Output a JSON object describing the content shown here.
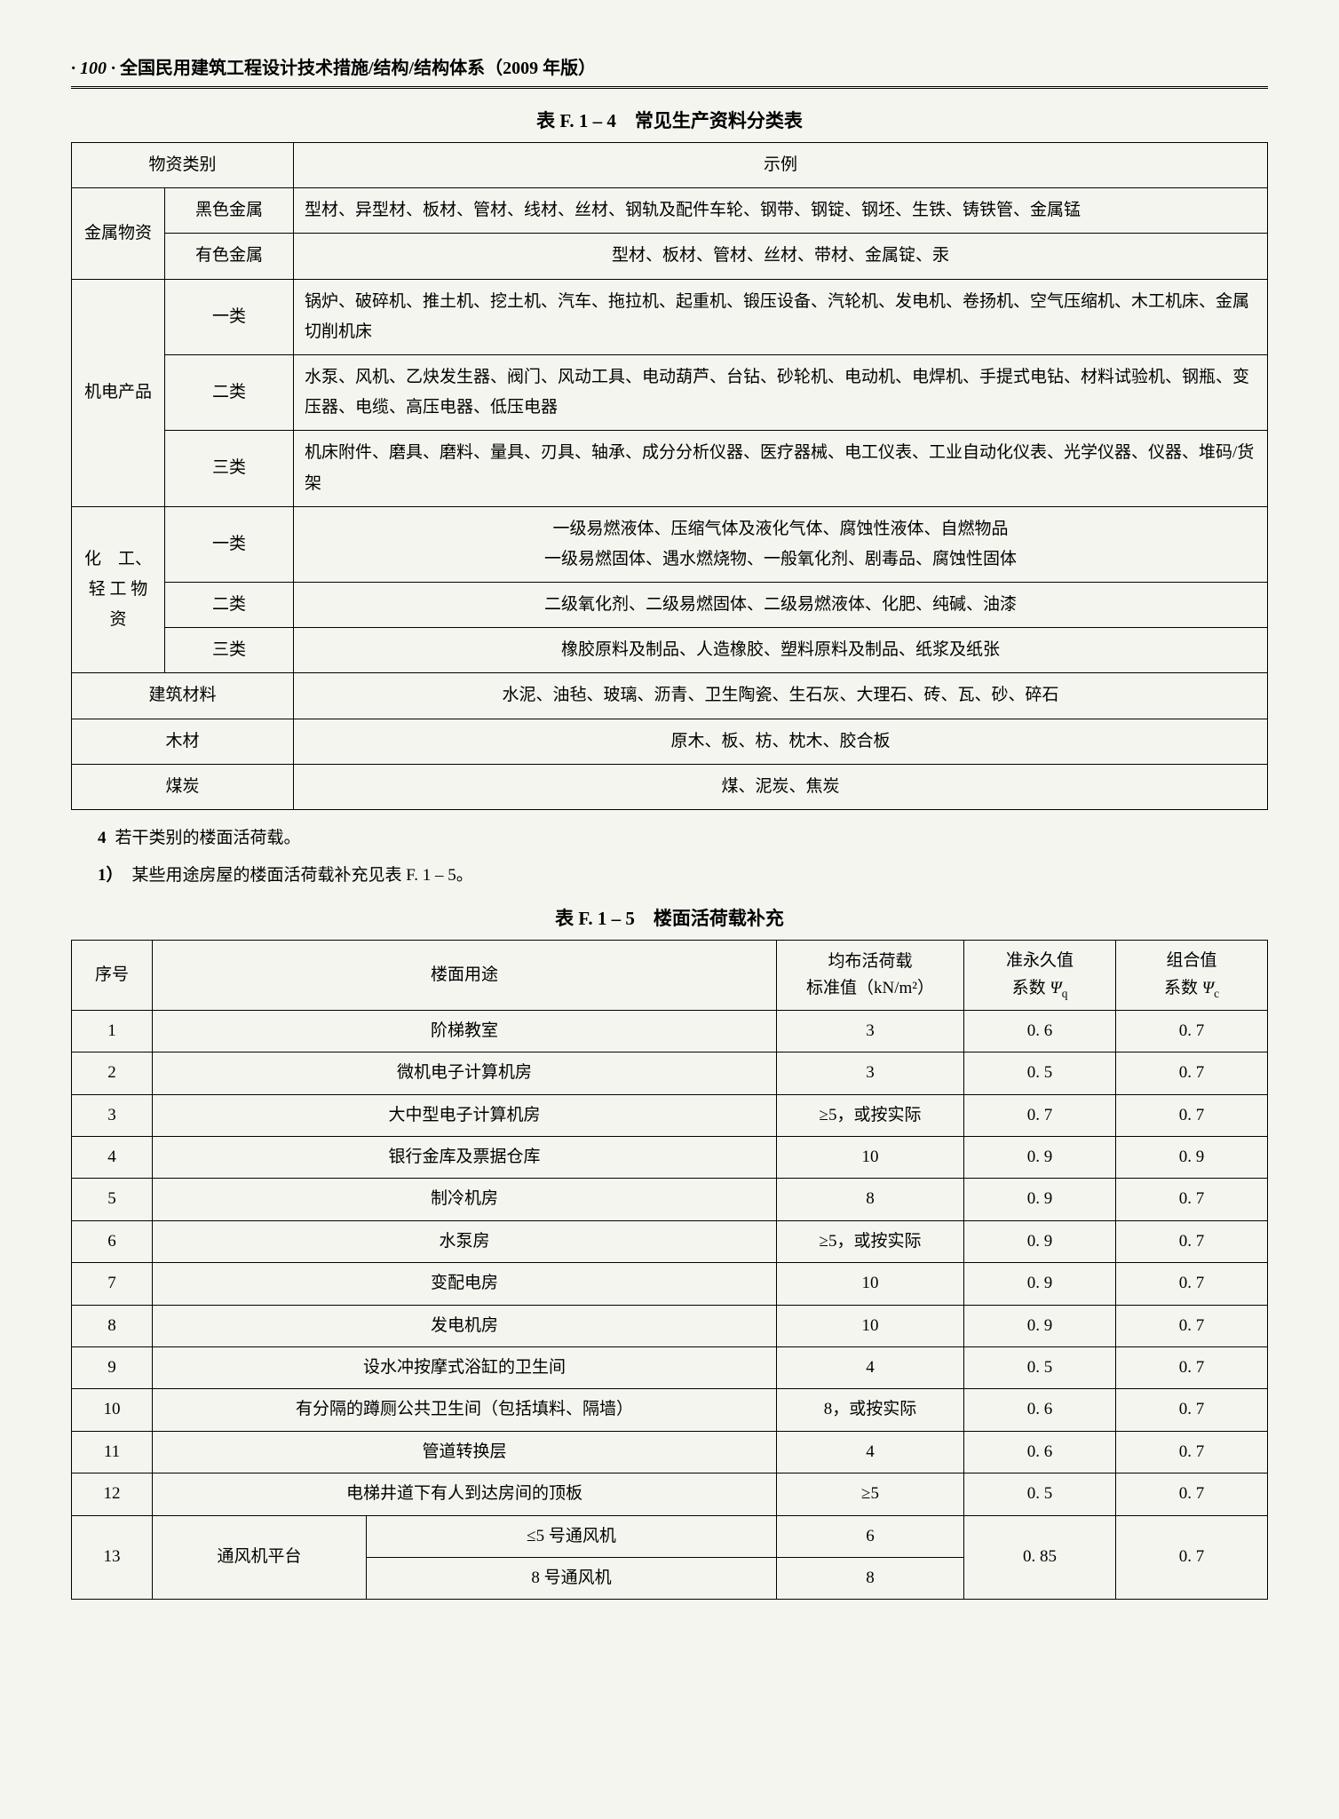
{
  "header": {
    "page_number": "· 100 ·",
    "title": "全国民用建筑工程设计技术措施/结构/结构体系（2009 年版）"
  },
  "table1": {
    "title": "表 F. 1 – 4　常见生产资料分类表",
    "header_col1": "物资类别",
    "header_col2": "示例",
    "rows": {
      "r1_cat": "金属物资",
      "r1_sub1": "黑色金属",
      "r1_ex1": "型材、异型材、板材、管材、线材、丝材、钢轨及配件车轮、钢带、钢锭、钢坯、生铁、铸铁管、金属锰",
      "r1_sub2": "有色金属",
      "r1_ex2": "型材、板材、管材、丝材、带材、金属锭、汞",
      "r2_cat": "机电产品",
      "r2_sub1": "一类",
      "r2_ex1": "锅炉、破碎机、推土机、挖土机、汽车、拖拉机、起重机、锻压设备、汽轮机、发电机、卷扬机、空气压缩机、木工机床、金属切削机床",
      "r2_sub2": "二类",
      "r2_ex2": "水泵、风机、乙炔发生器、阀门、风动工具、电动葫芦、台钻、砂轮机、电动机、电焊机、手提式电钻、材料试验机、钢瓶、变压器、电缆、高压电器、低压电器",
      "r2_sub3": "三类",
      "r2_ex3": "机床附件、磨具、磨料、量具、刃具、轴承、成分分析仪器、医疗器械、电工仪表、工业自动化仪表、光学仪器、仪器、堆码/货架",
      "r3_cat": "化　工、轻 工 物资",
      "r3_sub1": "一类",
      "r3_ex1a": "一级易燃液体、压缩气体及液化气体、腐蚀性液体、自燃物品",
      "r3_ex1b": "一级易燃固体、遇水燃烧物、一般氧化剂、剧毒品、腐蚀性固体",
      "r3_sub2": "二类",
      "r3_ex2": "二级氧化剂、二级易燃固体、二级易燃液体、化肥、纯碱、油漆",
      "r3_sub3": "三类",
      "r3_ex3": "橡胶原料及制品、人造橡胶、塑料原料及制品、纸浆及纸张",
      "r4_cat": "建筑材料",
      "r4_ex": "水泥、油毡、玻璃、沥青、卫生陶瓷、生石灰、大理石、砖、瓦、砂、碎石",
      "r5_cat": "木材",
      "r5_ex": "原木、板、枋、枕木、胶合板",
      "r6_cat": "煤炭",
      "r6_ex": "煤、泥炭、焦炭"
    }
  },
  "body": {
    "line4_num": "4",
    "line4_text": "若干类别的楼面活荷载。",
    "line1_num": "1）",
    "line1_text": "某些用途房屋的楼面活荷载补充见表 F. 1 – 5。"
  },
  "table2": {
    "title": "表 F. 1 – 5　楼面活荷载补充",
    "headers": {
      "h1": "序号",
      "h2": "楼面用途",
      "h3a": "均布活荷载",
      "h3b": "标准值（kN/m²）",
      "h4a": "准永久值",
      "h4b_prefix": "系数 ",
      "h4b_sym": "Ψ",
      "h4b_sub": "q",
      "h5a": "组合值",
      "h5b_prefix": "系数 ",
      "h5b_sym": "Ψ",
      "h5b_sub": "c"
    },
    "rows": [
      {
        "n": "1",
        "use": "阶梯教室",
        "v": "3",
        "q": "0. 6",
        "c": "0. 7"
      },
      {
        "n": "2",
        "use": "微机电子计算机房",
        "v": "3",
        "q": "0. 5",
        "c": "0. 7"
      },
      {
        "n": "3",
        "use": "大中型电子计算机房",
        "v": "≥5，或按实际",
        "q": "0. 7",
        "c": "0. 7"
      },
      {
        "n": "4",
        "use": "银行金库及票据仓库",
        "v": "10",
        "q": "0. 9",
        "c": "0. 9"
      },
      {
        "n": "5",
        "use": "制冷机房",
        "v": "8",
        "q": "0. 9",
        "c": "0. 7"
      },
      {
        "n": "6",
        "use": "水泵房",
        "v": "≥5，或按实际",
        "q": "0. 9",
        "c": "0. 7"
      },
      {
        "n": "7",
        "use": "变配电房",
        "v": "10",
        "q": "0. 9",
        "c": "0. 7"
      },
      {
        "n": "8",
        "use": "发电机房",
        "v": "10",
        "q": "0. 9",
        "c": "0. 7"
      },
      {
        "n": "9",
        "use": "设水冲按摩式浴缸的卫生间",
        "v": "4",
        "q": "0. 5",
        "c": "0. 7"
      },
      {
        "n": "10",
        "use": "有分隔的蹲厕公共卫生间（包括填料、隔墙）",
        "v": "8，或按实际",
        "q": "0. 6",
        "c": "0. 7"
      },
      {
        "n": "11",
        "use": "管道转换层",
        "v": "4",
        "q": "0. 6",
        "c": "0. 7"
      },
      {
        "n": "12",
        "use": "电梯井道下有人到达房间的顶板",
        "v": "≥5",
        "q": "0. 5",
        "c": "0. 7"
      }
    ],
    "row13": {
      "n": "13",
      "use": "通风机平台",
      "sub1": "≤5 号通风机",
      "v1": "6",
      "sub2": "8 号通风机",
      "v2": "8",
      "q": "0. 85",
      "c": "0. 7"
    }
  }
}
